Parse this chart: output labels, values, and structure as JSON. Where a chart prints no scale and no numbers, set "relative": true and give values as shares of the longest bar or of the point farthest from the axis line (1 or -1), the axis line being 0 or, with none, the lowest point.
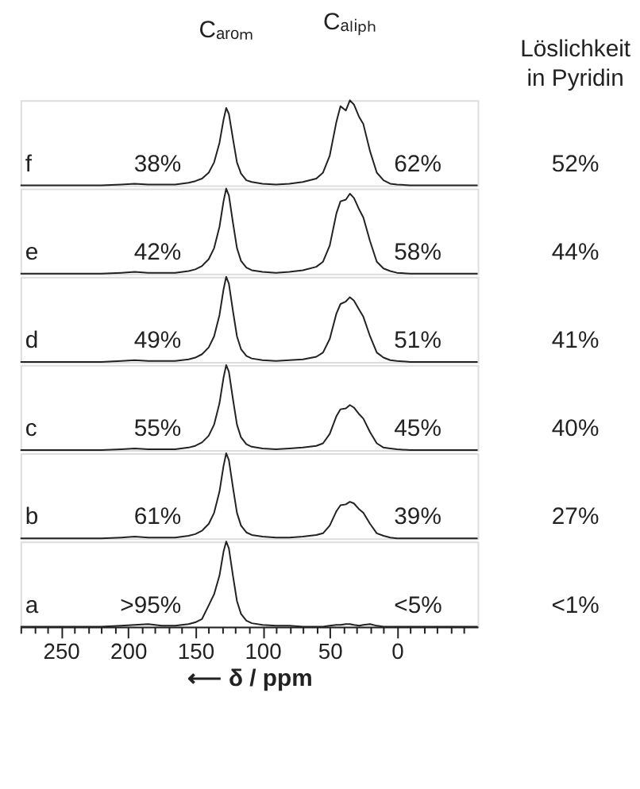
{
  "chart_data": [
    {
      "type": "line",
      "relative": true,
      "color": "#222222",
      "xlim": [
        280,
        -60
      ],
      "tick_labels": false,
      "x": [
        280,
        260,
        240,
        220,
        205,
        195,
        185,
        175,
        165,
        155,
        150,
        145,
        140,
        136,
        132,
        129,
        127,
        125,
        122,
        119,
        116,
        112,
        108,
        100,
        90,
        80,
        70,
        60,
        55,
        50,
        45,
        42,
        38,
        35,
        32,
        28,
        25,
        20,
        15,
        10,
        5,
        0,
        -10,
        -20,
        -30,
        -40,
        -50,
        -60
      ],
      "values": [
        0,
        0,
        0,
        0,
        0.01,
        0.02,
        0.01,
        0.01,
        0.01,
        0.03,
        0.05,
        0.08,
        0.15,
        0.27,
        0.5,
        0.77,
        0.91,
        0.84,
        0.55,
        0.27,
        0.14,
        0.06,
        0.04,
        0.02,
        0.01,
        0.02,
        0.04,
        0.08,
        0.15,
        0.35,
        0.75,
        0.93,
        0.88,
        1,
        0.95,
        0.8,
        0.72,
        0.4,
        0.15,
        0.06,
        0.02,
        0.01,
        0,
        0,
        0,
        0,
        0,
        0
      ],
      "annotations": [
        "f",
        "38%",
        "62%",
        "52%",
        {
          "text": "Cₐᵣₒₘ",
          "x": 127,
          "y": 0.91
        },
        {
          "text": "Cₐₗᵢₚₕ",
          "x": 35,
          "y": 1
        },
        "Löslichkeit\nin Pyridin"
      ]
    },
    {
      "type": "line",
      "relative": true,
      "color": "#222222",
      "xlim": [
        280,
        -60
      ],
      "tick_labels": false,
      "x": [
        280,
        260,
        240,
        220,
        205,
        195,
        185,
        175,
        165,
        155,
        150,
        145,
        140,
        136,
        132,
        129,
        127,
        125,
        122,
        119,
        116,
        112,
        108,
        100,
        90,
        80,
        70,
        60,
        55,
        50,
        45,
        42,
        38,
        35,
        32,
        28,
        25,
        20,
        15,
        10,
        5,
        0,
        -10,
        -20,
        -30,
        -40,
        -50,
        -60
      ],
      "values": [
        0,
        0,
        0,
        0,
        0.01,
        0.02,
        0.01,
        0.01,
        0.01,
        0.03,
        0.05,
        0.09,
        0.17,
        0.3,
        0.55,
        0.85,
        1,
        0.92,
        0.6,
        0.3,
        0.15,
        0.07,
        0.04,
        0.02,
        0.01,
        0.02,
        0.04,
        0.08,
        0.14,
        0.33,
        0.71,
        0.85,
        0.87,
        0.94,
        0.89,
        0.75,
        0.66,
        0.38,
        0.14,
        0.06,
        0.03,
        0.01,
        0,
        0,
        0,
        0,
        0,
        0
      ],
      "annotations": [
        "e",
        "42%",
        "58%",
        "44%"
      ]
    },
    {
      "type": "line",
      "relative": true,
      "color": "#222222",
      "xlim": [
        280,
        -60
      ],
      "tick_labels": false,
      "x": [
        280,
        260,
        240,
        220,
        205,
        195,
        185,
        175,
        165,
        155,
        150,
        145,
        140,
        136,
        132,
        129,
        127,
        125,
        122,
        119,
        116,
        112,
        108,
        100,
        90,
        80,
        70,
        60,
        55,
        50,
        45,
        42,
        38,
        35,
        32,
        28,
        25,
        20,
        15,
        10,
        5,
        0,
        -10,
        -20,
        -30,
        -40,
        -50,
        -60
      ],
      "values": [
        0,
        0,
        0,
        0,
        0.01,
        0.02,
        0.01,
        0.01,
        0.01,
        0.03,
        0.05,
        0.09,
        0.17,
        0.3,
        0.55,
        0.85,
        1,
        0.92,
        0.6,
        0.3,
        0.15,
        0.07,
        0.04,
        0.02,
        0.01,
        0.02,
        0.03,
        0.06,
        0.11,
        0.27,
        0.57,
        0.68,
        0.71,
        0.76,
        0.72,
        0.61,
        0.53,
        0.3,
        0.11,
        0.05,
        0.02,
        0.01,
        0,
        0,
        0,
        0,
        0,
        0
      ],
      "annotations": [
        "d",
        "49%",
        "51%",
        "41%"
      ]
    },
    {
      "type": "line",
      "relative": true,
      "color": "#222222",
      "xlim": [
        280,
        -60
      ],
      "tick_labels": false,
      "x": [
        280,
        260,
        240,
        220,
        205,
        195,
        185,
        175,
        165,
        155,
        150,
        145,
        140,
        136,
        132,
        129,
        127,
        125,
        122,
        119,
        116,
        112,
        108,
        100,
        90,
        80,
        70,
        60,
        55,
        50,
        45,
        42,
        38,
        35,
        32,
        28,
        25,
        20,
        15,
        10,
        5,
        0,
        -10,
        -20,
        -30,
        -40,
        -50,
        -60
      ],
      "values": [
        0,
        0,
        0,
        0,
        0.01,
        0.02,
        0.01,
        0.01,
        0.01,
        0.03,
        0.05,
        0.09,
        0.17,
        0.3,
        0.55,
        0.85,
        1,
        0.92,
        0.6,
        0.3,
        0.15,
        0.07,
        0.04,
        0.02,
        0.01,
        0.02,
        0.03,
        0.05,
        0.08,
        0.19,
        0.4,
        0.48,
        0.49,
        0.53,
        0.5,
        0.42,
        0.37,
        0.21,
        0.08,
        0.03,
        0.02,
        0.01,
        0,
        0,
        0,
        0,
        0,
        0
      ],
      "annotations": [
        "c",
        "55%",
        "45%",
        "40%"
      ]
    },
    {
      "type": "line",
      "relative": true,
      "color": "#222222",
      "xlim": [
        280,
        -60
      ],
      "tick_labels": false,
      "x": [
        280,
        260,
        240,
        220,
        205,
        195,
        185,
        175,
        165,
        155,
        150,
        145,
        140,
        136,
        132,
        129,
        127,
        125,
        122,
        119,
        116,
        112,
        108,
        100,
        90,
        80,
        70,
        60,
        55,
        50,
        45,
        42,
        38,
        35,
        32,
        28,
        25,
        20,
        15,
        10,
        5,
        0,
        -10,
        -20,
        -30,
        -40,
        -50,
        -60
      ],
      "values": [
        0,
        0,
        0,
        0,
        0.01,
        0.02,
        0.01,
        0.01,
        0.01,
        0.03,
        0.05,
        0.09,
        0.17,
        0.3,
        0.55,
        0.85,
        1,
        0.92,
        0.6,
        0.3,
        0.15,
        0.07,
        0.04,
        0.02,
        0.01,
        0.01,
        0.02,
        0.04,
        0.06,
        0.15,
        0.32,
        0.39,
        0.4,
        0.43,
        0.41,
        0.34,
        0.3,
        0.17,
        0.06,
        0.03,
        0.01,
        0,
        0,
        0,
        0,
        0,
        0,
        0
      ],
      "annotations": [
        "b",
        "61%",
        "39%",
        "27%"
      ]
    },
    {
      "type": "line",
      "relative": true,
      "color": "#222222",
      "xlim": [
        280,
        -60
      ],
      "tick_labels": "x",
      "xlabel": "⟵ δ / ppm",
      "x": [
        280,
        260,
        240,
        220,
        205,
        195,
        185,
        175,
        165,
        155,
        150,
        145,
        140,
        136,
        132,
        129,
        127,
        125,
        122,
        119,
        116,
        112,
        108,
        100,
        90,
        80,
        70,
        60,
        55,
        50,
        45,
        42,
        38,
        35,
        32,
        28,
        25,
        20,
        15,
        10,
        5,
        0,
        -10,
        -20,
        -30,
        -40,
        -50,
        -60
      ],
      "values": [
        0,
        0,
        0,
        0,
        0.01,
        0.02,
        0.03,
        0.01,
        0.01,
        0.03,
        0.05,
        0.09,
        0.25,
        0.38,
        0.6,
        0.88,
        1,
        0.92,
        0.6,
        0.3,
        0.15,
        0.07,
        0.04,
        0.02,
        0.01,
        0.01,
        0,
        0,
        0,
        0.01,
        0.02,
        0.02,
        0.03,
        0.03,
        0.02,
        0.01,
        0.02,
        0.03,
        0.01,
        0,
        0,
        0,
        0,
        0,
        0,
        0,
        0,
        0
      ],
      "xticks": [
        {
          "value": 280,
          "label": null
        },
        {
          "value": 270,
          "label": null
        },
        {
          "value": 260,
          "label": null
        },
        250,
        {
          "value": 240,
          "label": null
        },
        {
          "value": 230,
          "label": null
        },
        {
          "value": 220,
          "label": null
        },
        {
          "value": 210,
          "label": null
        },
        200,
        {
          "value": 190,
          "label": null
        },
        {
          "value": 180,
          "label": null
        },
        {
          "value": 170,
          "label": null
        },
        {
          "value": 160,
          "label": null
        },
        150,
        {
          "value": 140,
          "label": null
        },
        {
          "value": 130,
          "label": null
        },
        {
          "value": 120,
          "label": null
        },
        {
          "value": 110,
          "label": null
        },
        100,
        {
          "value": 90,
          "label": null
        },
        {
          "value": 80,
          "label": null
        },
        {
          "value": 70,
          "label": null
        },
        {
          "value": 60,
          "label": null
        },
        50,
        {
          "value": 40,
          "label": null
        },
        {
          "value": 30,
          "label": null
        },
        {
          "value": 20,
          "label": null
        },
        {
          "value": 10,
          "label": null
        },
        0,
        {
          "value": -10,
          "label": null
        },
        {
          "value": -20,
          "label": null
        },
        {
          "value": -30,
          "label": null
        },
        {
          "value": -40,
          "label": null
        },
        {
          "value": -50,
          "label": null
        }
      ],
      "annotations": [
        "a",
        ">95%",
        "<5%",
        "<1%"
      ]
    }
  ]
}
